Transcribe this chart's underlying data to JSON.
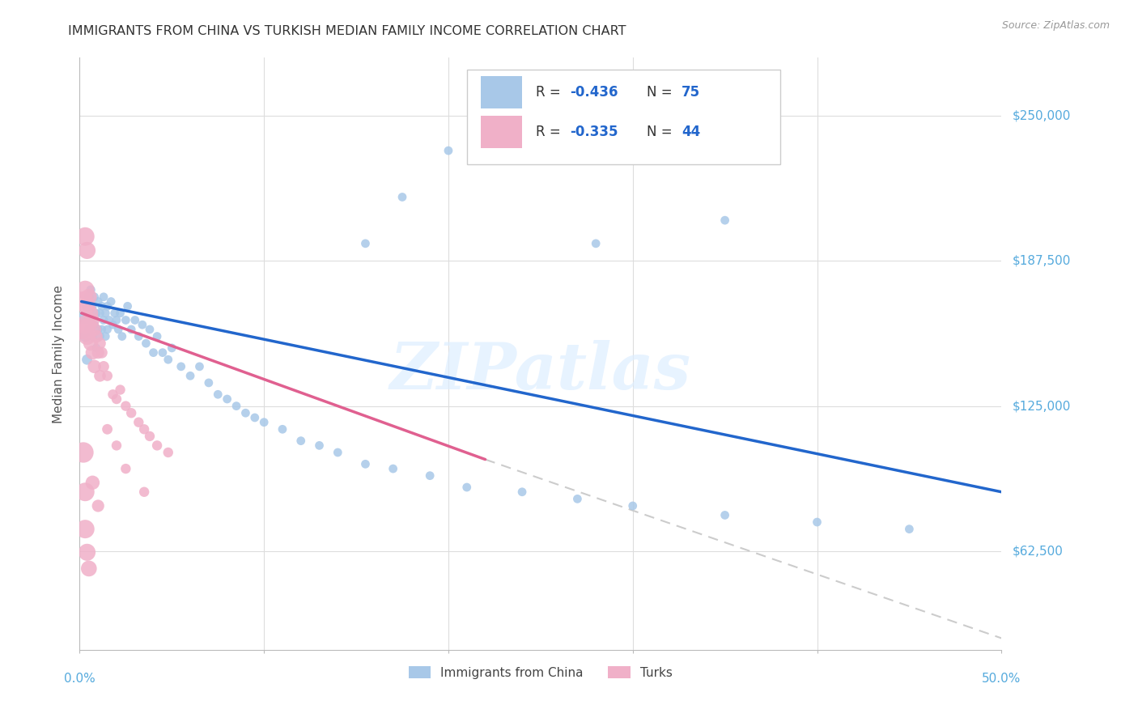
{
  "title": "IMMIGRANTS FROM CHINA VS TURKISH MEDIAN FAMILY INCOME CORRELATION CHART",
  "source": "Source: ZipAtlas.com",
  "ylabel": "Median Family Income",
  "yticks": [
    62500,
    125000,
    187500,
    250000
  ],
  "ytick_labels": [
    "$62,500",
    "$125,000",
    "$187,500",
    "$250,000"
  ],
  "xlim": [
    0.0,
    0.5
  ],
  "ylim": [
    20000,
    275000
  ],
  "legend_r1": "R = -0.436",
  "legend_n1": "75",
  "legend_r2": "R = -0.335",
  "legend_n2": "44",
  "legend_label1": "Immigrants from China",
  "legend_label2": "Turks",
  "china_color": "#a8c8e8",
  "turk_color": "#f0b0c8",
  "trendline_china_color": "#2266cc",
  "trendline_turk_color": "#e06090",
  "trendline_extended_color": "#cccccc",
  "watermark": "ZIPatlas",
  "china_scatter": [
    [
      0.002,
      163000
    ],
    [
      0.003,
      155000
    ],
    [
      0.004,
      168000
    ],
    [
      0.004,
      145000
    ],
    [
      0.005,
      172000
    ],
    [
      0.005,
      158000
    ],
    [
      0.006,
      175000
    ],
    [
      0.006,
      162000
    ],
    [
      0.007,
      168000
    ],
    [
      0.007,
      155000
    ],
    [
      0.008,
      172000
    ],
    [
      0.008,
      160000
    ],
    [
      0.009,
      165000
    ],
    [
      0.009,
      150000
    ],
    [
      0.01,
      170000
    ],
    [
      0.01,
      158000
    ],
    [
      0.011,
      165000
    ],
    [
      0.011,
      155000
    ],
    [
      0.012,
      168000
    ],
    [
      0.012,
      158000
    ],
    [
      0.013,
      162000
    ],
    [
      0.013,
      172000
    ],
    [
      0.014,
      165000
    ],
    [
      0.014,
      155000
    ],
    [
      0.015,
      168000
    ],
    [
      0.015,
      158000
    ],
    [
      0.016,
      162000
    ],
    [
      0.017,
      170000
    ],
    [
      0.018,
      160000
    ],
    [
      0.019,
      165000
    ],
    [
      0.02,
      162000
    ],
    [
      0.021,
      158000
    ],
    [
      0.022,
      165000
    ],
    [
      0.023,
      155000
    ],
    [
      0.025,
      162000
    ],
    [
      0.026,
      168000
    ],
    [
      0.028,
      158000
    ],
    [
      0.03,
      162000
    ],
    [
      0.032,
      155000
    ],
    [
      0.034,
      160000
    ],
    [
      0.036,
      152000
    ],
    [
      0.038,
      158000
    ],
    [
      0.04,
      148000
    ],
    [
      0.042,
      155000
    ],
    [
      0.045,
      148000
    ],
    [
      0.048,
      145000
    ],
    [
      0.05,
      150000
    ],
    [
      0.055,
      142000
    ],
    [
      0.06,
      138000
    ],
    [
      0.065,
      142000
    ],
    [
      0.07,
      135000
    ],
    [
      0.075,
      130000
    ],
    [
      0.08,
      128000
    ],
    [
      0.085,
      125000
    ],
    [
      0.09,
      122000
    ],
    [
      0.095,
      120000
    ],
    [
      0.1,
      118000
    ],
    [
      0.11,
      115000
    ],
    [
      0.12,
      110000
    ],
    [
      0.13,
      108000
    ],
    [
      0.14,
      105000
    ],
    [
      0.155,
      100000
    ],
    [
      0.17,
      98000
    ],
    [
      0.19,
      95000
    ],
    [
      0.21,
      90000
    ],
    [
      0.24,
      88000
    ],
    [
      0.27,
      85000
    ],
    [
      0.3,
      82000
    ],
    [
      0.35,
      78000
    ],
    [
      0.4,
      75000
    ],
    [
      0.45,
      72000
    ],
    [
      0.175,
      215000
    ],
    [
      0.2,
      235000
    ],
    [
      0.35,
      205000
    ],
    [
      0.155,
      195000
    ],
    [
      0.28,
      195000
    ]
  ],
  "turk_scatter": [
    [
      0.002,
      170000
    ],
    [
      0.002,
      158000
    ],
    [
      0.003,
      175000
    ],
    [
      0.003,
      160000
    ],
    [
      0.004,
      168000
    ],
    [
      0.004,
      155000
    ],
    [
      0.005,
      172000
    ],
    [
      0.005,
      160000
    ],
    [
      0.006,
      165000
    ],
    [
      0.006,
      152000
    ],
    [
      0.007,
      162000
    ],
    [
      0.007,
      148000
    ],
    [
      0.008,
      158000
    ],
    [
      0.008,
      142000
    ],
    [
      0.009,
      155000
    ],
    [
      0.01,
      148000
    ],
    [
      0.011,
      152000
    ],
    [
      0.011,
      138000
    ],
    [
      0.012,
      148000
    ],
    [
      0.013,
      142000
    ],
    [
      0.015,
      138000
    ],
    [
      0.018,
      130000
    ],
    [
      0.02,
      128000
    ],
    [
      0.022,
      132000
    ],
    [
      0.025,
      125000
    ],
    [
      0.028,
      122000
    ],
    [
      0.032,
      118000
    ],
    [
      0.035,
      115000
    ],
    [
      0.038,
      112000
    ],
    [
      0.042,
      108000
    ],
    [
      0.048,
      105000
    ],
    [
      0.003,
      198000
    ],
    [
      0.004,
      192000
    ],
    [
      0.002,
      105000
    ],
    [
      0.003,
      88000
    ],
    [
      0.003,
      72000
    ],
    [
      0.004,
      62000
    ],
    [
      0.005,
      55000
    ],
    [
      0.007,
      92000
    ],
    [
      0.01,
      82000
    ],
    [
      0.015,
      115000
    ],
    [
      0.02,
      108000
    ],
    [
      0.025,
      98000
    ],
    [
      0.035,
      88000
    ]
  ],
  "china_trend_x": [
    0.001,
    0.5
  ],
  "china_trend_y": [
    170000,
    88000
  ],
  "turk_trend_x": [
    0.001,
    0.22
  ],
  "turk_trend_y": [
    165000,
    102000
  ],
  "extended_trend_x": [
    0.22,
    0.5
  ],
  "extended_trend_y": [
    102000,
    25000
  ]
}
